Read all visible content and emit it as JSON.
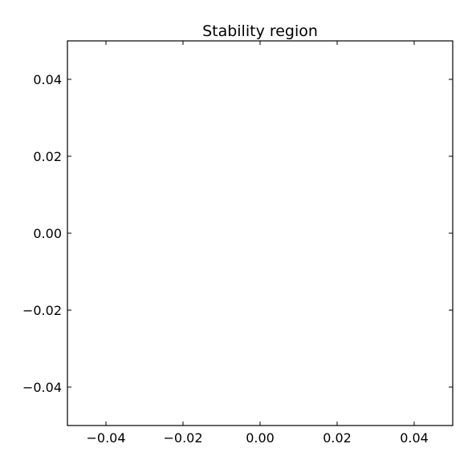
{
  "chart_data": {
    "type": "scatter",
    "title": "Stability region",
    "xlabel": "",
    "ylabel": "",
    "xlim": [
      -0.05,
      0.05
    ],
    "ylim": [
      -0.05,
      0.05
    ],
    "xticks": [
      -0.04,
      -0.02,
      0.0,
      0.02,
      0.04
    ],
    "yticks": [
      -0.04,
      -0.02,
      0.0,
      0.02,
      0.04
    ],
    "xtick_labels": [
      "−0.04",
      "−0.02",
      "0.00",
      "0.02",
      "0.04"
    ],
    "ytick_labels": [
      "−0.04",
      "−0.02",
      "0.00",
      "0.02",
      "0.04"
    ],
    "grid": false,
    "series": [],
    "colors": {
      "axes": "#000000",
      "background": "#ffffff"
    }
  }
}
